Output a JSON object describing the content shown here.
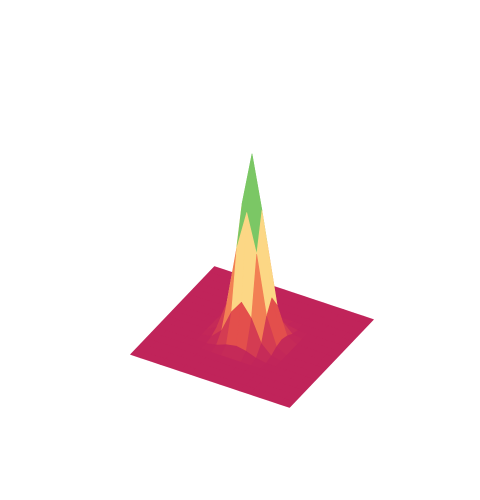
{
  "chart_data": {
    "type": "surface",
    "colorscale": [
      "#c0245a",
      "#e8554a",
      "#f99a5a",
      "#fde08b",
      "#d8ee9a",
      "#86cc68",
      "#1f9a4e",
      "#0a6e3a"
    ],
    "x": [
      -2,
      -1.75,
      -1.5,
      -1.25,
      -1,
      -0.75,
      -0.5,
      -0.25,
      0,
      0.25,
      0.5,
      0.75,
      1,
      1.25,
      1.5,
      1.75,
      2
    ],
    "y": [
      -2,
      -1.75,
      -1.5,
      -1.25,
      -1,
      -0.75,
      -0.5,
      -0.25,
      0,
      0.25,
      0.5,
      0.75,
      1,
      1.25,
      1.5,
      1.75,
      2
    ],
    "z": [
      [
        0,
        0,
        0,
        0,
        0,
        0,
        0,
        0,
        0,
        0,
        0,
        0,
        0,
        0,
        0,
        0,
        0
      ],
      [
        0,
        0,
        0,
        0,
        0,
        0,
        0,
        0,
        0,
        0,
        0,
        0,
        0,
        0,
        0,
        0,
        0
      ],
      [
        0,
        0,
        0,
        0,
        0,
        0,
        0,
        0,
        0,
        0,
        0,
        0,
        0,
        0,
        0,
        0,
        0
      ],
      [
        0,
        0,
        0,
        0,
        0,
        0,
        0,
        0,
        0,
        0,
        0,
        0,
        0,
        0,
        0,
        0,
        0
      ],
      [
        0,
        0,
        0,
        0,
        0,
        0,
        0,
        0,
        0,
        0,
        0,
        0,
        0,
        0,
        0,
        0,
        0
      ],
      [
        0,
        0,
        0,
        0,
        0,
        0,
        0.01,
        0.03,
        0.04,
        0.03,
        0.01,
        0,
        0,
        0,
        0,
        0,
        0
      ],
      [
        0,
        0,
        0,
        0,
        0,
        0.01,
        0.06,
        0.18,
        0.25,
        0.18,
        0.06,
        0.01,
        0,
        0,
        0,
        0,
        0
      ],
      [
        0,
        0,
        0,
        0,
        0,
        0.03,
        0.18,
        0.5,
        0.71,
        0.5,
        0.18,
        0.03,
        0,
        0,
        0,
        0,
        0
      ],
      [
        0,
        0,
        0,
        0,
        0,
        0.04,
        0.25,
        0.71,
        1,
        0.71,
        0.25,
        0.04,
        0,
        0,
        0,
        0,
        0
      ],
      [
        0,
        0,
        0,
        0,
        0,
        0.03,
        0.18,
        0.5,
        0.71,
        0.5,
        0.18,
        0.03,
        0,
        0,
        0,
        0,
        0
      ],
      [
        0,
        0,
        0,
        0,
        0,
        0.01,
        0.06,
        0.18,
        0.25,
        0.18,
        0.06,
        0.01,
        0,
        0,
        0,
        0,
        0
      ],
      [
        0,
        0,
        0,
        0,
        0,
        0,
        0.01,
        0.03,
        0.04,
        0.03,
        0.01,
        0,
        0,
        0,
        0,
        0,
        0
      ],
      [
        0,
        0,
        0,
        0,
        0,
        0,
        0,
        0,
        0,
        0,
        0,
        0,
        0,
        0,
        0,
        0,
        0
      ],
      [
        0,
        0,
        0,
        0,
        0,
        0,
        0,
        0,
        0,
        0,
        0,
        0,
        0,
        0,
        0,
        0,
        0
      ],
      [
        0,
        0,
        0,
        0,
        0,
        0,
        0,
        0,
        0,
        0,
        0,
        0,
        0,
        0,
        0,
        0,
        0
      ],
      [
        0,
        0,
        0,
        0,
        0,
        0,
        0,
        0,
        0,
        0,
        0,
        0,
        0,
        0,
        0,
        0,
        0
      ],
      [
        0,
        0,
        0,
        0,
        0,
        0,
        0,
        0,
        0,
        0,
        0,
        0,
        0,
        0,
        0,
        0,
        0
      ]
    ]
  }
}
